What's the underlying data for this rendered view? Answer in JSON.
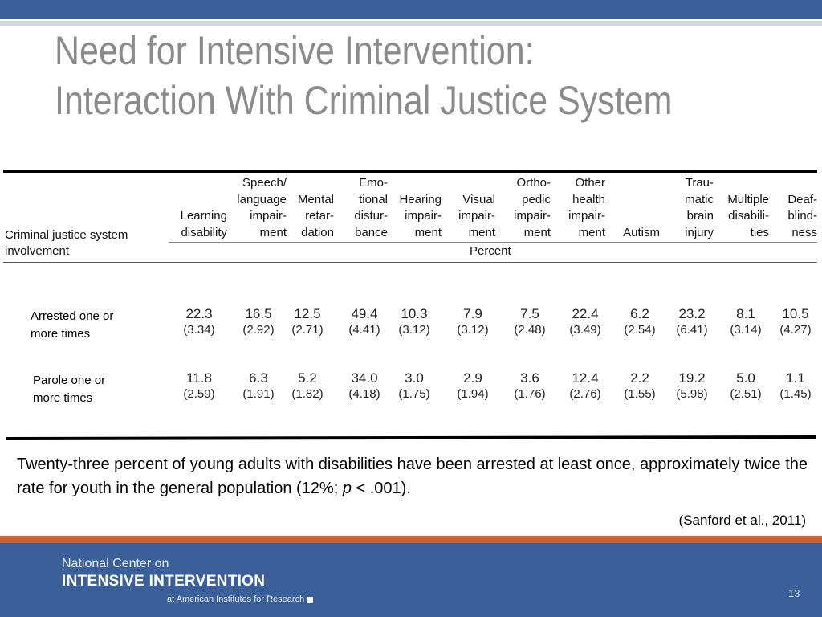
{
  "title": {
    "line1": "Need for Intensive Intervention:",
    "line2": "Interaction With Criminal Justice System"
  },
  "table": {
    "stub_header": [
      "Criminal justice system",
      "involvement"
    ],
    "percent_label": "Percent",
    "columns": [
      {
        "lines": [
          "Learning",
          "disability"
        ]
      },
      {
        "lines": [
          "Speech/",
          "language",
          "impair-",
          "ment"
        ]
      },
      {
        "lines": [
          "Mental",
          "retar-",
          "dation"
        ]
      },
      {
        "lines": [
          "Emo-",
          "tional",
          "distur-",
          "bance"
        ]
      },
      {
        "lines": [
          "Hearing",
          "impair-",
          "ment"
        ]
      },
      {
        "lines": [
          "Visual",
          "impair-",
          "ment"
        ]
      },
      {
        "lines": [
          "Ortho-",
          "pedic",
          "impair-",
          "ment"
        ]
      },
      {
        "lines": [
          "Other",
          "health",
          "impair-",
          "ment"
        ]
      },
      {
        "lines": [
          "Autism"
        ]
      },
      {
        "lines": [
          "Trau-",
          "matic",
          "brain",
          "injury"
        ]
      },
      {
        "lines": [
          "Multiple",
          "disabili-",
          "ties"
        ]
      },
      {
        "lines": [
          "Deaf-",
          "blind-",
          "ness"
        ]
      }
    ],
    "rows": [
      {
        "label": [
          "Arrested one or",
          "more times"
        ],
        "values": [
          "22.3",
          "16.5",
          "12.5",
          "49.4",
          "10.3",
          "7.9",
          "7.5",
          "22.4",
          "6.2",
          "23.2",
          "8.1",
          "10.5"
        ],
        "errors": [
          "(3.34)",
          "(2.92)",
          "(2.71)",
          "(4.41)",
          "(3.12)",
          "(3.12)",
          "(2.48)",
          "(3.49)",
          "(2.54)",
          "(6.41)",
          "(3.14)",
          "(4.27)"
        ]
      },
      {
        "label": [
          "Parole one or",
          "more times"
        ],
        "values": [
          "11.8",
          "6.3",
          "5.2",
          "34.0",
          "3.0",
          "2.9",
          "3.6",
          "12.4",
          "2.2",
          "19.2",
          "5.0",
          "1.1"
        ],
        "errors": [
          "(2.59)",
          "(1.91)",
          "(1.82)",
          "(4.18)",
          "(1.75)",
          "(1.94)",
          "(1.76)",
          "(2.76)",
          "(1.55)",
          "(5.98)",
          "(2.51)",
          "(1.45)"
        ]
      }
    ]
  },
  "summary": {
    "before": "Twenty-three percent of young adults with disabilities have been arrested at least once, approximately twice the rate for youth in the general population (12%; ",
    "italic": "p",
    "after": " < .001)."
  },
  "citation": "(Sanford et al., 2011)",
  "footer": {
    "line1": "National Center on",
    "line2": "INTENSIVE INTERVENTION",
    "line3": "at American Institutes for Research",
    "page_number": "13"
  },
  "colors": {
    "header_blue": "#3a5f99",
    "accent_orange": "#d6602c",
    "title_gray": "#8b8b8b"
  }
}
